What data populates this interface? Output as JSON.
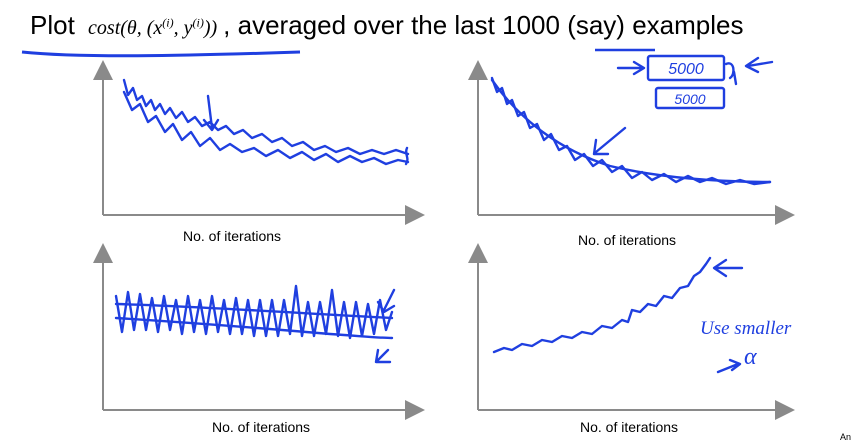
{
  "title": {
    "prefix": "Plot",
    "cost_fn": "cost(θ, (x",
    "sup_i": "(i)",
    "comma_y": ", y",
    "sup_i2": "(i)",
    "close": "))",
    "suffix_a": ", averaged over the last ",
    "number": "1000",
    "suffix_b": " (say) examples"
  },
  "plots": [
    {
      "xlabel": "No. of iterations"
    },
    {
      "xlabel": "No. of iterations"
    },
    {
      "xlabel": "No. of iterations"
    },
    {
      "xlabel": "No. of iterations"
    }
  ],
  "annotations": {
    "box_top": "5000",
    "box_bottom": "5000",
    "use_smaller": "Use smaller",
    "alpha": "α"
  },
  "corner": "An",
  "colors": {
    "ink": "#1f3fe0",
    "axis": "#8a8a8a"
  }
}
